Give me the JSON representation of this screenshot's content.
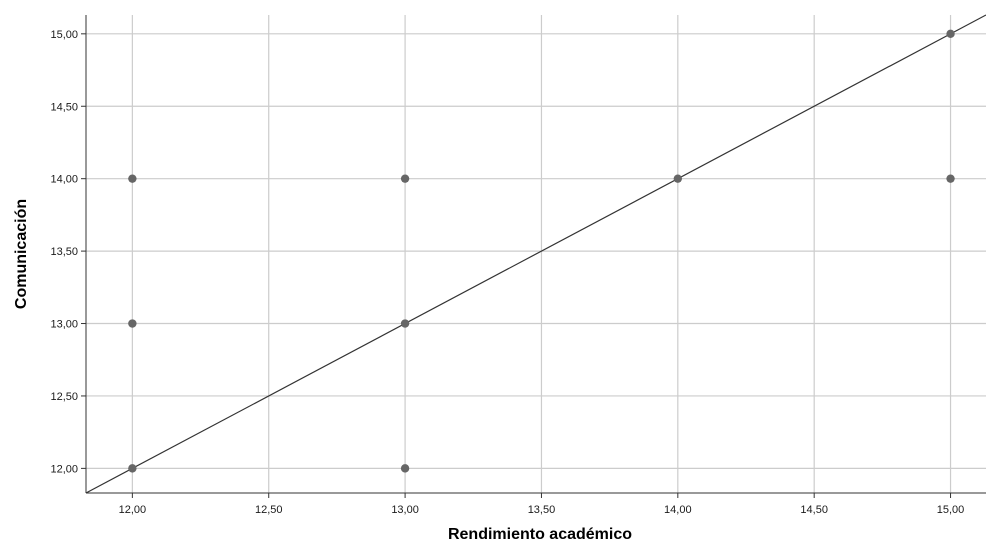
{
  "chart_data": {
    "type": "scatter",
    "xlabel": "Rendimiento académico",
    "ylabel": "Comunicación",
    "xlim": [
      11.83,
      15.13
    ],
    "ylim": [
      11.83,
      15.13
    ],
    "x_ticks": [
      "12,00",
      "12,50",
      "13,00",
      "13,50",
      "14,00",
      "14,50",
      "15,00"
    ],
    "y_ticks": [
      "12,00",
      "12,50",
      "13,00",
      "13,50",
      "14,00",
      "14,50",
      "15,00"
    ],
    "grid": true,
    "points": [
      {
        "x": 12,
        "y": 12
      },
      {
        "x": 12,
        "y": 13
      },
      {
        "x": 12,
        "y": 14
      },
      {
        "x": 13,
        "y": 12
      },
      {
        "x": 13,
        "y": 13
      },
      {
        "x": 13,
        "y": 14
      },
      {
        "x": 14,
        "y": 14
      },
      {
        "x": 15,
        "y": 14
      },
      {
        "x": 15,
        "y": 15
      }
    ],
    "fit_line": {
      "slope": 1,
      "intercept": 0
    },
    "colors": {
      "point": "#666666",
      "grid": "#cccccc",
      "axis": "#333333",
      "fit_line": "#333333"
    }
  }
}
